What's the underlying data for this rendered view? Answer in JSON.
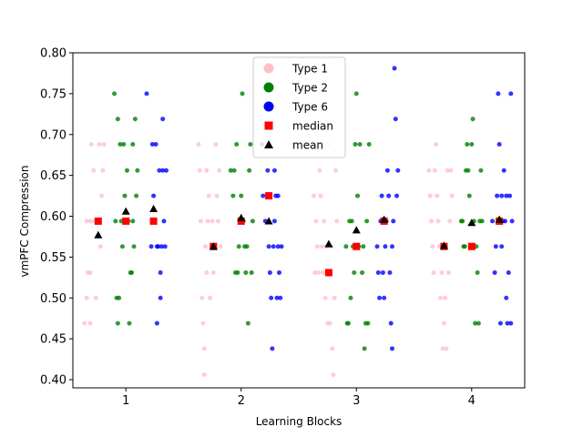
{
  "chart_data": {
    "type": "scatter",
    "title": "",
    "xlabel": "Learning Blocks",
    "ylabel": "vmPFC Compression",
    "xlim": [
      0.54,
      4.46
    ],
    "ylim": [
      0.39,
      0.8
    ],
    "x_ticks": [
      "1",
      "2",
      "3",
      "4"
    ],
    "y_ticks": [
      "0.40",
      "0.45",
      "0.50",
      "0.55",
      "0.60",
      "0.65",
      "0.70",
      "0.75",
      "0.80"
    ],
    "grid": false,
    "legend_position": "top-center",
    "legend": [
      {
        "label": "Type 1",
        "marker": "circle",
        "color": "#ffc0cb"
      },
      {
        "label": "Type 2",
        "marker": "circle",
        "color": "#008000"
      },
      {
        "label": "Type 6",
        "marker": "circle",
        "color": "#0000ff"
      },
      {
        "label": "median",
        "marker": "square",
        "color": "#ff0000"
      },
      {
        "label": "mean",
        "marker": "triangle",
        "color": "#000000"
      }
    ],
    "series": [
      {
        "name": "Type 1",
        "color": "#ffc0cb",
        "points": [
          [
            0.64,
            0.469
          ],
          [
            0.66,
            0.5
          ],
          [
            0.67,
            0.531
          ],
          [
            0.69,
            0.531
          ],
          [
            0.69,
            0.594
          ],
          [
            0.7,
            0.688
          ],
          [
            0.72,
            0.656
          ],
          [
            0.73,
            0.594
          ],
          [
            0.74,
            0.5
          ],
          [
            0.76,
            0.594
          ],
          [
            0.77,
            0.688
          ],
          [
            0.78,
            0.563
          ],
          [
            0.79,
            0.625
          ],
          [
            0.8,
            0.656
          ],
          [
            0.81,
            0.688
          ],
          [
            0.69,
            0.469
          ],
          [
            0.66,
            0.594
          ],
          [
            1.63,
            0.688
          ],
          [
            1.64,
            0.656
          ],
          [
            1.65,
            0.594
          ],
          [
            1.66,
            0.5
          ],
          [
            1.67,
            0.469
          ],
          [
            1.68,
            0.438
          ],
          [
            1.68,
            0.406
          ],
          [
            1.69,
            0.563
          ],
          [
            1.7,
            0.656
          ],
          [
            1.7,
            0.531
          ],
          [
            1.71,
            0.594
          ],
          [
            1.72,
            0.625
          ],
          [
            1.73,
            0.5
          ],
          [
            1.74,
            0.563
          ],
          [
            1.75,
            0.594
          ],
          [
            1.76,
            0.531
          ],
          [
            1.77,
            0.563
          ],
          [
            1.78,
            0.688
          ],
          [
            1.79,
            0.625
          ],
          [
            1.8,
            0.594
          ],
          [
            1.81,
            0.656
          ],
          [
            1.82,
            0.563
          ],
          [
            2.63,
            0.625
          ],
          [
            2.64,
            0.531
          ],
          [
            2.65,
            0.594
          ],
          [
            2.66,
            0.563
          ],
          [
            2.67,
            0.531
          ],
          [
            2.68,
            0.656
          ],
          [
            2.69,
            0.625
          ],
          [
            2.7,
            0.563
          ],
          [
            2.71,
            0.531
          ],
          [
            2.72,
            0.594
          ],
          [
            2.73,
            0.5
          ],
          [
            2.74,
            0.563
          ],
          [
            2.75,
            0.469
          ],
          [
            2.76,
            0.688
          ],
          [
            2.77,
            0.469
          ],
          [
            2.78,
            0.563
          ],
          [
            2.79,
            0.438
          ],
          [
            2.8,
            0.406
          ],
          [
            2.81,
            0.5
          ],
          [
            2.82,
            0.656
          ],
          [
            2.83,
            0.594
          ],
          [
            3.63,
            0.656
          ],
          [
            3.64,
            0.625
          ],
          [
            3.65,
            0.594
          ],
          [
            3.66,
            0.563
          ],
          [
            3.67,
            0.531
          ],
          [
            3.68,
            0.656
          ],
          [
            3.69,
            0.688
          ],
          [
            3.7,
            0.625
          ],
          [
            3.71,
            0.594
          ],
          [
            3.72,
            0.563
          ],
          [
            3.73,
            0.5
          ],
          [
            3.74,
            0.531
          ],
          [
            3.75,
            0.438
          ],
          [
            3.76,
            0.469
          ],
          [
            3.77,
            0.5
          ],
          [
            3.78,
            0.438
          ],
          [
            3.79,
            0.656
          ],
          [
            3.8,
            0.531
          ],
          [
            3.81,
            0.594
          ],
          [
            3.82,
            0.656
          ],
          [
            3.83,
            0.625
          ]
        ]
      },
      {
        "name": "Type 2",
        "color": "#008000",
        "points": [
          [
            0.9,
            0.75
          ],
          [
            0.91,
            0.594
          ],
          [
            0.92,
            0.5
          ],
          [
            0.93,
            0.719
          ],
          [
            0.93,
            0.469
          ],
          [
            0.94,
            0.5
          ],
          [
            0.95,
            0.688
          ],
          [
            0.96,
            0.594
          ],
          [
            0.97,
            0.563
          ],
          [
            0.98,
            0.688
          ],
          [
            0.99,
            0.625
          ],
          [
            1.0,
            0.594
          ],
          [
            1.01,
            0.656
          ],
          [
            1.02,
            0.594
          ],
          [
            1.03,
            0.469
          ],
          [
            1.04,
            0.531
          ],
          [
            1.05,
            0.531
          ],
          [
            1.06,
            0.688
          ],
          [
            1.07,
            0.563
          ],
          [
            1.08,
            0.719
          ],
          [
            1.09,
            0.625
          ],
          [
            1.1,
            0.656
          ],
          [
            1.06,
            0.594
          ],
          [
            1.91,
            0.656
          ],
          [
            1.93,
            0.625
          ],
          [
            1.94,
            0.656
          ],
          [
            1.95,
            0.531
          ],
          [
            1.96,
            0.688
          ],
          [
            1.97,
            0.531
          ],
          [
            1.98,
            0.563
          ],
          [
            1.99,
            0.594
          ],
          [
            2.0,
            0.625
          ],
          [
            2.01,
            0.75
          ],
          [
            2.02,
            0.594
          ],
          [
            2.03,
            0.563
          ],
          [
            2.04,
            0.531
          ],
          [
            2.05,
            0.563
          ],
          [
            2.06,
            0.469
          ],
          [
            2.07,
            0.656
          ],
          [
            2.08,
            0.688
          ],
          [
            2.09,
            0.531
          ],
          [
            2.1,
            0.594
          ],
          [
            2.91,
            0.563
          ],
          [
            2.92,
            0.469
          ],
          [
            2.93,
            0.469
          ],
          [
            2.94,
            0.594
          ],
          [
            2.95,
            0.5
          ],
          [
            2.96,
            0.594
          ],
          [
            2.97,
            0.563
          ],
          [
            2.98,
            0.531
          ],
          [
            2.99,
            0.688
          ],
          [
            3.0,
            0.75
          ],
          [
            3.01,
            0.625
          ],
          [
            3.02,
            0.563
          ],
          [
            3.03,
            0.688
          ],
          [
            3.05,
            0.531
          ],
          [
            3.06,
            0.563
          ],
          [
            3.07,
            0.438
          ],
          [
            3.08,
            0.469
          ],
          [
            3.09,
            0.594
          ],
          [
            3.1,
            0.469
          ],
          [
            3.11,
            0.688
          ],
          [
            3.91,
            0.594
          ],
          [
            3.92,
            0.594
          ],
          [
            3.93,
            0.563
          ],
          [
            3.94,
            0.563
          ],
          [
            3.95,
            0.656
          ],
          [
            3.96,
            0.688
          ],
          [
            3.97,
            0.656
          ],
          [
            3.98,
            0.625
          ],
          [
            3.99,
            0.563
          ],
          [
            4.0,
            0.688
          ],
          [
            4.01,
            0.719
          ],
          [
            4.02,
            0.594
          ],
          [
            4.03,
            0.469
          ],
          [
            4.04,
            0.563
          ],
          [
            4.05,
            0.531
          ],
          [
            4.06,
            0.469
          ],
          [
            4.07,
            0.594
          ],
          [
            4.08,
            0.656
          ],
          [
            4.09,
            0.594
          ]
        ]
      },
      {
        "name": "Type 6",
        "color": "#0000ff",
        "points": [
          [
            1.18,
            0.75
          ],
          [
            1.22,
            0.563
          ],
          [
            1.23,
            0.688
          ],
          [
            1.24,
            0.625
          ],
          [
            1.25,
            0.594
          ],
          [
            1.26,
            0.688
          ],
          [
            1.27,
            0.469
          ],
          [
            1.28,
            0.563
          ],
          [
            1.29,
            0.656
          ],
          [
            1.3,
            0.531
          ],
          [
            1.31,
            0.563
          ],
          [
            1.32,
            0.656
          ],
          [
            1.33,
            0.594
          ],
          [
            1.34,
            0.563
          ],
          [
            1.35,
            0.656
          ],
          [
            1.32,
            0.719
          ],
          [
            1.3,
            0.5
          ],
          [
            1.27,
            0.563
          ],
          [
            2.18,
            0.688
          ],
          [
            2.19,
            0.625
          ],
          [
            2.21,
            0.594
          ],
          [
            2.23,
            0.656
          ],
          [
            2.24,
            0.563
          ],
          [
            2.25,
            0.531
          ],
          [
            2.26,
            0.5
          ],
          [
            2.27,
            0.438
          ],
          [
            2.28,
            0.563
          ],
          [
            2.29,
            0.594
          ],
          [
            2.3,
            0.625
          ],
          [
            2.31,
            0.5
          ],
          [
            2.32,
            0.563
          ],
          [
            2.33,
            0.531
          ],
          [
            2.34,
            0.5
          ],
          [
            2.35,
            0.563
          ],
          [
            2.32,
            0.625
          ],
          [
            2.29,
            0.656
          ],
          [
            3.18,
            0.563
          ],
          [
            3.19,
            0.531
          ],
          [
            3.2,
            0.5
          ],
          [
            3.21,
            0.594
          ],
          [
            3.22,
            0.625
          ],
          [
            3.23,
            0.531
          ],
          [
            3.24,
            0.5
          ],
          [
            3.25,
            0.563
          ],
          [
            3.26,
            0.594
          ],
          [
            3.27,
            0.656
          ],
          [
            3.28,
            0.625
          ],
          [
            3.29,
            0.531
          ],
          [
            3.3,
            0.469
          ],
          [
            3.31,
            0.438
          ],
          [
            3.32,
            0.594
          ],
          [
            3.33,
            0.781
          ],
          [
            3.34,
            0.719
          ],
          [
            3.35,
            0.625
          ],
          [
            3.36,
            0.656
          ],
          [
            3.31,
            0.563
          ],
          [
            4.18,
            0.594
          ],
          [
            4.2,
            0.531
          ],
          [
            4.21,
            0.563
          ],
          [
            4.22,
            0.625
          ],
          [
            4.23,
            0.75
          ],
          [
            4.24,
            0.688
          ],
          [
            4.25,
            0.469
          ],
          [
            4.26,
            0.625
          ],
          [
            4.27,
            0.594
          ],
          [
            4.28,
            0.656
          ],
          [
            4.29,
            0.594
          ],
          [
            4.3,
            0.625
          ],
          [
            4.31,
            0.469
          ],
          [
            4.32,
            0.531
          ],
          [
            4.33,
            0.625
          ],
          [
            4.34,
            0.75
          ],
          [
            4.35,
            0.594
          ],
          [
            4.34,
            0.469
          ],
          [
            4.3,
            0.5
          ],
          [
            4.26,
            0.563
          ]
        ]
      }
    ],
    "median": {
      "name": "median",
      "color": "#ff0000",
      "points": [
        [
          0.76,
          0.594
        ],
        [
          1.0,
          0.594
        ],
        [
          1.24,
          0.594
        ],
        [
          1.76,
          0.563
        ],
        [
          2.0,
          0.594
        ],
        [
          2.24,
          0.625
        ],
        [
          2.76,
          0.531
        ],
        [
          3.0,
          0.563
        ],
        [
          3.24,
          0.594
        ],
        [
          3.76,
          0.563
        ],
        [
          4.0,
          0.563
        ],
        [
          4.24,
          0.594
        ]
      ]
    },
    "mean": {
      "name": "mean",
      "color": "#000000",
      "points": [
        [
          0.76,
          0.577
        ],
        [
          1.0,
          0.606
        ],
        [
          1.24,
          0.609
        ],
        [
          1.76,
          0.563
        ],
        [
          2.0,
          0.598
        ],
        [
          2.24,
          0.594
        ],
        [
          2.76,
          0.566
        ],
        [
          3.0,
          0.583
        ],
        [
          3.24,
          0.596
        ],
        [
          3.76,
          0.564
        ],
        [
          4.0,
          0.592
        ],
        [
          4.24,
          0.596
        ]
      ]
    }
  }
}
